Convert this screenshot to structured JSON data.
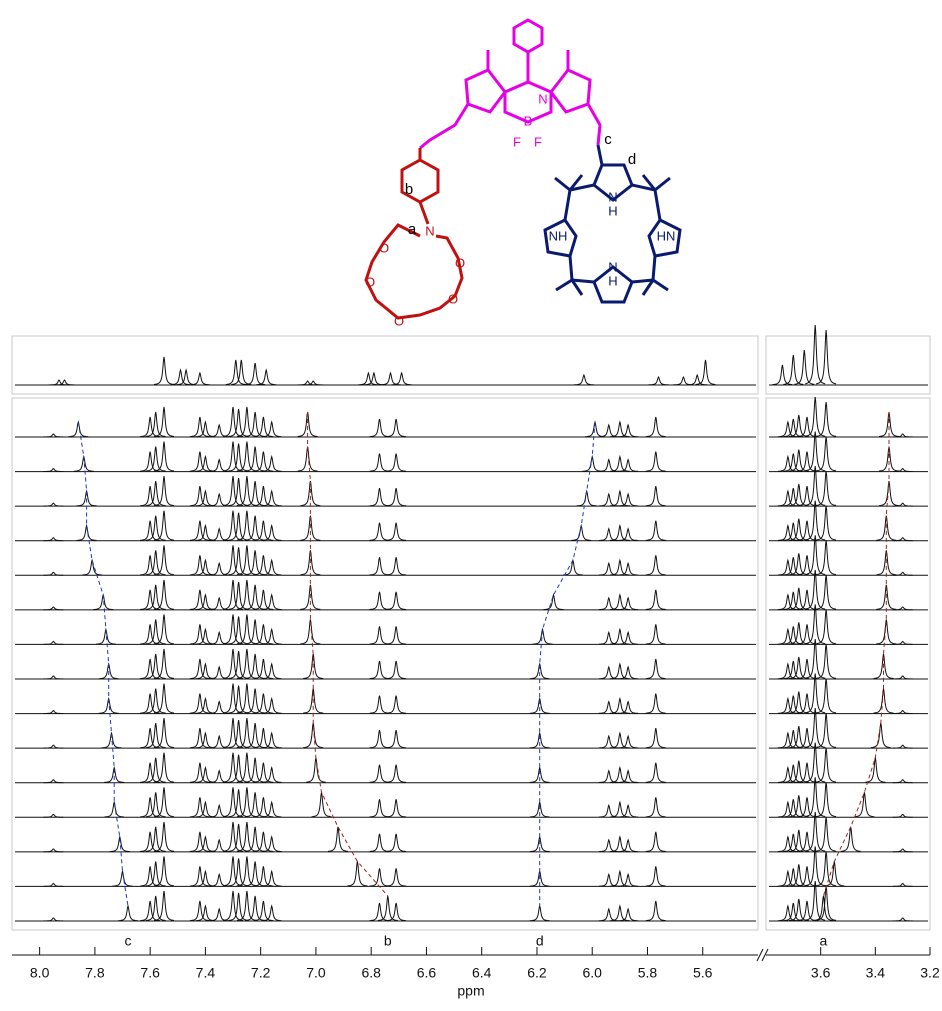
{
  "chart_data": {
    "type": "nmr-stack",
    "x_label": "ppm",
    "segments": [
      {
        "xlim": [
          8.1,
          5.4
        ],
        "xticks": [
          {
            "value": 8.0,
            "label": "8.0"
          },
          7.8,
          7.6,
          7.4,
          7.2,
          {
            "value": 7.0,
            "label": "7.0"
          },
          6.8,
          6.6,
          6.4,
          6.2,
          {
            "value": 6.0,
            "label": "6.0"
          },
          5.8,
          5.6
        ]
      },
      {
        "xlim": [
          3.8,
          3.2
        ],
        "xticks": [
          3.6,
          3.4,
          3.2
        ]
      }
    ],
    "reference_peaks": [
      [
        7.93,
        5
      ],
      [
        7.91,
        5
      ],
      [
        7.55,
        28
      ],
      [
        7.49,
        15
      ],
      [
        7.47,
        15
      ],
      [
        7.42,
        12
      ],
      [
        7.29,
        25
      ],
      [
        7.27,
        25
      ],
      [
        7.22,
        22
      ],
      [
        7.18,
        15
      ],
      [
        7.03,
        4
      ],
      [
        7.01,
        4
      ],
      [
        6.81,
        12
      ],
      [
        6.79,
        12
      ],
      [
        6.73,
        12
      ],
      [
        6.69,
        12
      ],
      [
        6.03,
        10
      ],
      [
        5.76,
        8
      ],
      [
        5.67,
        8
      ],
      [
        5.62,
        10
      ],
      [
        5.59,
        25
      ],
      [
        3.74,
        20
      ],
      [
        3.7,
        30
      ],
      [
        3.66,
        35
      ],
      [
        3.62,
        60
      ],
      [
        3.58,
        55
      ]
    ],
    "trace_peaks": [
      [
        7.95,
        3
      ],
      [
        7.6,
        20
      ],
      [
        7.58,
        25
      ],
      [
        7.55,
        30
      ],
      [
        7.42,
        20
      ],
      [
        7.4,
        15
      ],
      [
        7.35,
        12
      ],
      [
        7.3,
        30
      ],
      [
        7.28,
        28
      ],
      [
        7.25,
        30
      ],
      [
        7.22,
        25
      ],
      [
        7.19,
        20
      ],
      [
        7.16,
        15
      ],
      [
        6.77,
        18
      ],
      [
        6.71,
        18
      ],
      [
        5.94,
        12
      ],
      [
        5.9,
        15
      ],
      [
        5.87,
        12
      ],
      [
        5.77,
        20
      ],
      [
        3.72,
        15
      ],
      [
        3.7,
        18
      ],
      [
        3.68,
        22
      ],
      [
        3.65,
        20
      ],
      [
        3.62,
        40
      ],
      [
        3.58,
        35
      ],
      [
        3.3,
        3
      ]
    ],
    "tracked": [
      {
        "name": "c",
        "color": "#2233cc",
        "height": 15,
        "values": [
          7.86,
          7.84,
          7.83,
          7.83,
          7.81,
          7.77,
          7.76,
          7.75,
          7.75,
          7.74,
          7.73,
          7.73,
          7.71,
          7.7,
          7.68
        ]
      },
      {
        "name": "b",
        "color": "#a02020",
        "height": 25,
        "values": [
          7.03,
          7.03,
          7.02,
          7.02,
          7.02,
          7.02,
          7.02,
          7.01,
          7.01,
          7.01,
          7.0,
          6.98,
          6.92,
          6.85,
          6.74
        ]
      },
      {
        "name": "d",
        "color": "#2233cc",
        "height": 15,
        "values": [
          5.99,
          6.0,
          6.02,
          6.04,
          6.07,
          6.14,
          6.18,
          6.19,
          6.19,
          6.19,
          6.19,
          6.19,
          6.19,
          6.19,
          6.19
        ]
      },
      {
        "name": "a",
        "color": "#a02020",
        "height": 25,
        "values": [
          3.35,
          3.35,
          3.35,
          3.36,
          3.36,
          3.36,
          3.36,
          3.37,
          3.37,
          3.38,
          3.4,
          3.44,
          3.49,
          3.55,
          3.59
        ]
      }
    ]
  },
  "structure": {
    "atoms": [
      "N",
      "B",
      "F",
      "F",
      "N",
      "O",
      "O",
      "O",
      "O",
      "O",
      "N",
      "H",
      "NH",
      "HN",
      "N",
      "H"
    ]
  }
}
